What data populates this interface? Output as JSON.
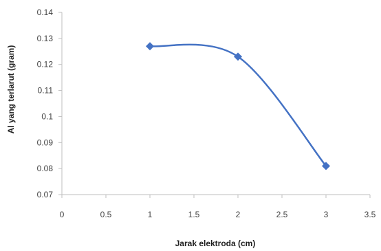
{
  "chart_data": {
    "type": "scatter",
    "title": "",
    "xlabel": "Jarak elektroda (cm)",
    "ylabel": "Al yang terlarut (gram)",
    "xlim": [
      0,
      3.5
    ],
    "ylim": [
      0.07,
      0.14
    ],
    "x_ticks": [
      "0",
      "0.5",
      "1",
      "1.5",
      "2",
      "2.5",
      "3",
      "3.5"
    ],
    "y_ticks": [
      "0.07",
      "0.08",
      "0.09",
      "0.1",
      "0.11",
      "0.12",
      "0.13",
      "0.14"
    ],
    "grid": false,
    "legend": "none",
    "line_style": "smooth",
    "marker": "diamond",
    "series_color": "#4472c4",
    "series": [
      {
        "x": [
          1,
          2,
          3
        ],
        "y": [
          0.127,
          0.123,
          0.081
        ]
      }
    ]
  }
}
